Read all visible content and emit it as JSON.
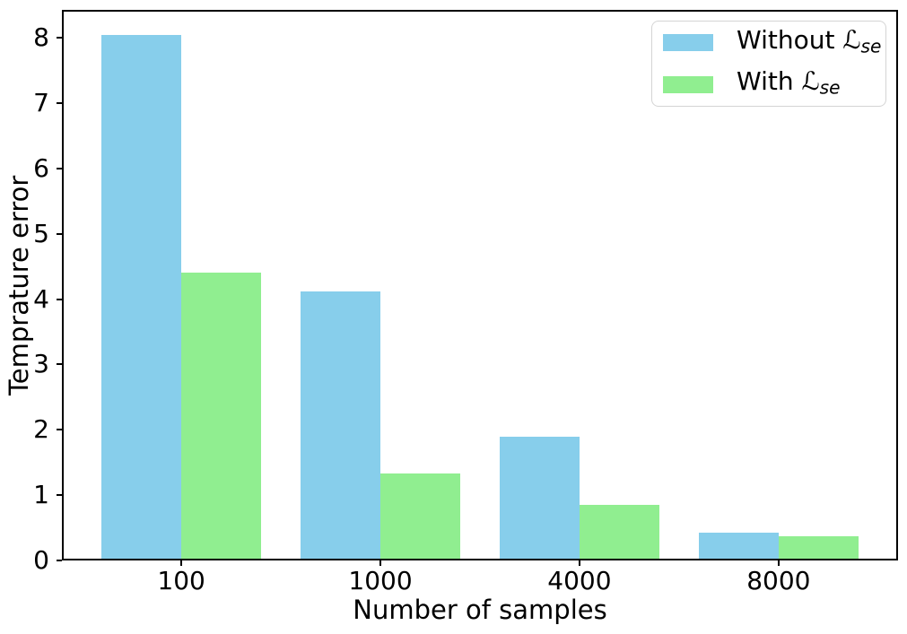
{
  "figure": {
    "background": "#ffffff",
    "text_color": "#000000",
    "spine_color": "#000000",
    "legend_border_color": "#d4d4d4"
  },
  "chart_data": {
    "type": "bar",
    "title": "",
    "xlabel": "Number of samples",
    "ylabel": "Temprature error",
    "categories": [
      "100",
      "1000",
      "4000",
      "8000"
    ],
    "series": [
      {
        "name": "Without ℒse",
        "key": "without-lse",
        "label_prefix": "Without ",
        "symbol": "ℒ",
        "subscript": "se",
        "color": "#87CEEB",
        "values": [
          8.05,
          4.12,
          1.89,
          0.42
        ]
      },
      {
        "name": "With ℒse",
        "key": "with-lse",
        "label_prefix": "With ",
        "symbol": "ℒ",
        "subscript": "se",
        "color": "#90EE90",
        "values": [
          4.41,
          1.33,
          0.85,
          0.37
        ]
      }
    ],
    "ylim": [
      0,
      8.43
    ],
    "yticks": [
      0,
      1,
      2,
      3,
      4,
      5,
      6,
      7,
      8
    ],
    "xlim_units": [
      -0.6,
      3.6
    ],
    "bar_width_units": 0.4,
    "grid": false,
    "legend": {
      "position": "upper right"
    }
  }
}
